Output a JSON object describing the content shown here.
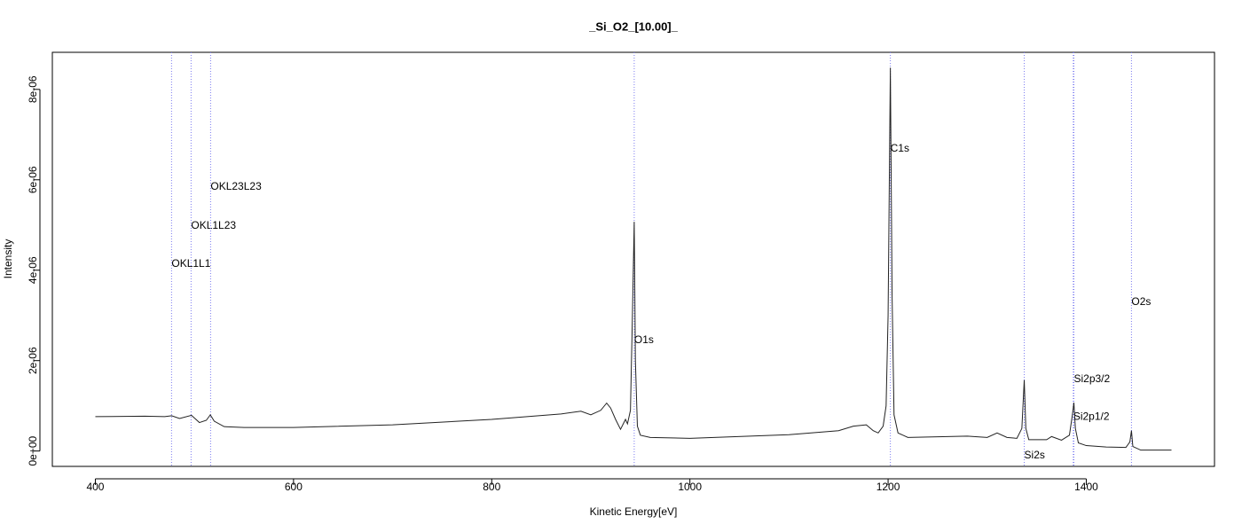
{
  "chart_data": {
    "type": "line",
    "title": "_Si_O2_[10.00]_",
    "x_label": "Kinetic Energy[eV]",
    "y_label": "Intensity",
    "xlim": [
      356.6,
      1529.4
    ],
    "ylim": [
      -3.4e-07,
      8.82e-06
    ],
    "xticks": [
      400,
      600,
      800,
      1000,
      1200,
      1400
    ],
    "yticks": [
      {
        "value": 0,
        "label": "0e+00"
      },
      {
        "value": 2e-06,
        "label": "2e-06"
      },
      {
        "value": 4e-06,
        "label": "4e-06"
      },
      {
        "value": 6e-06,
        "label": "6e-06"
      },
      {
        "value": 8e-06,
        "label": "8e-06"
      }
    ],
    "color": "#222222",
    "marker_color": "#7b7bf0",
    "x": [
      400,
      450,
      470,
      477,
      485,
      497,
      505,
      512,
      516,
      520,
      530,
      550,
      600,
      700,
      800,
      870,
      890,
      900,
      910,
      916,
      920,
      925,
      930,
      935,
      937,
      940,
      942,
      943.8,
      945,
      947,
      950,
      960,
      1000,
      1100,
      1150,
      1165,
      1178,
      1185,
      1190,
      1195,
      1198,
      1200,
      1202.3,
      1204,
      1206,
      1210,
      1220,
      1280,
      1300,
      1310,
      1320,
      1330,
      1335,
      1337.4,
      1339,
      1342,
      1360,
      1365,
      1375,
      1383,
      1386,
      1387.5,
      1389,
      1392,
      1400,
      1420,
      1440,
      1444,
      1445.6,
      1447,
      1455,
      1486
    ],
    "values": [
      7.6e-07,
      7.7e-07,
      7.6e-07,
      7.8e-07,
      7.2e-07,
      7.9e-07,
      6.3e-07,
      6.8e-07,
      8e-07,
      6.6e-07,
      5.4e-07,
      5.2e-07,
      5.2e-07,
      5.8e-07,
      7e-07,
      8.2e-07,
      8.8e-07,
      8e-07,
      9e-07,
      1.06e-06,
      9.5e-07,
      7e-07,
      4.8e-07,
      7e-07,
      6e-07,
      9e-07,
      3e-06,
      5.07e-06,
      2e-06,
      5.5e-07,
      3.5e-07,
      3e-07,
      2.8e-07,
      3.6e-07,
      4.5e-07,
      5.5e-07,
      5.8e-07,
      4.5e-07,
      4e-07,
      5.5e-07,
      1e-06,
      3e-06,
      8.48e-06,
      3.5e-06,
      8e-07,
      4e-07,
      3e-07,
      3.3e-07,
      3e-07,
      4e-07,
      3e-07,
      2.8e-07,
      5e-07,
      1.57e-06,
      5e-07,
      2.5e-07,
      2.5e-07,
      3.2e-07,
      2.4e-07,
      3.5e-07,
      8e-07,
      1.07e-06,
      5e-07,
      1.8e-07,
      1.2e-07,
      9e-08,
      8e-08,
      2e-07,
      4.5e-07,
      1e-07,
      2e-08,
      2e-08
    ],
    "markers": [
      {
        "label": "OKL1L1",
        "x": 476.9,
        "label_y": 4.14e-06
      },
      {
        "label": "OKL1L23",
        "x": 496.6,
        "label_y": 4.98e-06
      },
      {
        "label": "OKL23L23",
        "x": 516.3,
        "label_y": 5.84e-06
      },
      {
        "label": "O1s",
        "x": 943.8,
        "label_y": 2.45e-06
      },
      {
        "label": "C1s",
        "x": 1202.3,
        "label_y": 6.69e-06
      },
      {
        "label": "Si2s",
        "x": 1337.4,
        "label_y": -1e-07
      },
      {
        "label": "Si2p3/2",
        "x": 1387.5,
        "label_y": 1.59e-06
      },
      {
        "label": "Si2p1/2",
        "x": 1386.9,
        "label_y": 7.5e-07
      },
      {
        "label": "O2s",
        "x": 1445.6,
        "label_y": 3.29e-06
      }
    ]
  }
}
